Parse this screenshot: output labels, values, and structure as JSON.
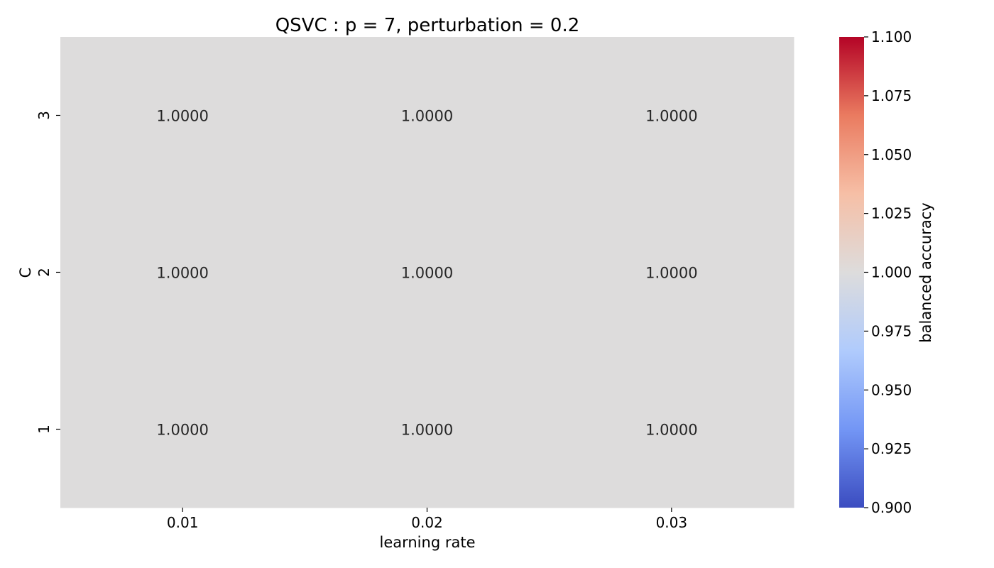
{
  "chart_data": {
    "type": "heatmap",
    "title": "QSVC : p = 7, perturbation = 0.2",
    "xlabel": "learning rate",
    "ylabel": "C",
    "x_categories": [
      "0.01",
      "0.02",
      "0.03"
    ],
    "y_categories": [
      "3",
      "2",
      "1"
    ],
    "values": [
      [
        1.0,
        1.0,
        1.0
      ],
      [
        1.0,
        1.0,
        1.0
      ],
      [
        1.0,
        1.0,
        1.0
      ]
    ],
    "cell_labels": [
      [
        "1.0000",
        "1.0000",
        "1.0000"
      ],
      [
        "1.0000",
        "1.0000",
        "1.0000"
      ],
      [
        "1.0000",
        "1.0000",
        "1.0000"
      ]
    ],
    "colorbar": {
      "label": "balanced accuracy",
      "range": [
        0.9,
        1.1
      ],
      "ticks": [
        "0.900",
        "0.925",
        "0.950",
        "0.975",
        "1.000",
        "1.025",
        "1.050",
        "1.075",
        "1.100"
      ],
      "colormap": "coolwarm",
      "colors": [
        "#3b4cc0",
        "#7396f5",
        "#b0cbfc",
        "#dddcdc",
        "#f6bfa6",
        "#ea7b60",
        "#b40426"
      ]
    },
    "cell_color": "#dddcdc",
    "label_color": "#262626"
  }
}
